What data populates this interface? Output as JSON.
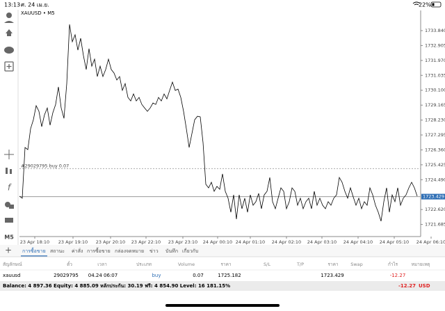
{
  "status_bar": {
    "time": "13:13",
    "date": "ศ. 24 เม.ย.",
    "battery": "22%"
  },
  "chart_data": {
    "type": "line",
    "title": "XAUUSD • M5",
    "color": "#000000",
    "values": [
      1723.46,
      1723.33,
      1726.51,
      1726.38,
      1727.69,
      1728.25,
      1729.13,
      1728.78,
      1727.82,
      1728.56,
      1728.99,
      1727.91,
      1728.69,
      1729.21,
      1730.31,
      1728.99,
      1728.34,
      1730.52,
      1734.23,
      1733.14,
      1733.58,
      1732.62,
      1733.36,
      1732.27,
      1731.4,
      1732.71,
      1731.61,
      1732.05,
      1730.96,
      1731.61,
      1730.96,
      1731.4,
      1732.05,
      1731.4,
      1731.18,
      1730.74,
      1730.96,
      1730.09,
      1730.52,
      1729.65,
      1729.43,
      1729.87,
      1729.43,
      1729.65,
      1729.21,
      1728.99,
      1728.78,
      1728.99,
      1729.3,
      1729.21,
      1729.65,
      1729.43,
      1729.87,
      1729.56,
      1730.09,
      1730.61,
      1730.09,
      1730.17,
      1729.65,
      1728.78,
      1727.69,
      1726.51,
      1727.38,
      1728.25,
      1728.47,
      1728.43,
      1726.82,
      1724.2,
      1723.98,
      1724.33,
      1723.76,
      1724.07,
      1723.89,
      1724.85,
      1723.76,
      1723.33,
      1722.45,
      1723.54,
      1722.02,
      1723.54,
      1722.67,
      1723.33,
      1722.45,
      1723.54,
      1722.89,
      1723.11,
      1723.63,
      1722.67,
      1723.54,
      1723.76,
      1724.63,
      1723.11,
      1722.67,
      1723.33,
      1723.98,
      1723.76,
      1722.67,
      1723.11,
      1723.98,
      1723.76,
      1722.89,
      1723.33,
      1722.67,
      1723.11,
      1723.33,
      1722.67,
      1723.76,
      1722.89,
      1723.33,
      1722.89,
      1722.67,
      1723.11,
      1722.89,
      1723.33,
      1723.54,
      1724.63,
      1724.33,
      1723.76,
      1723.33,
      1723.98,
      1723.41,
      1722.89,
      1723.33,
      1722.67,
      1723.11,
      1722.89,
      1723.98,
      1723.54,
      1722.89,
      1722.45,
      1721.89,
      1723.11,
      1723.98,
      1722.45,
      1723.54,
      1723.11,
      1723.98,
      1722.89,
      1723.33,
      1723.54,
      1723.98,
      1724.33,
      1723.98,
      1723.46
    ],
    "xlim": [
      0,
      144
    ],
    "xticks": [
      {
        "value": 5.5,
        "label": "23 Apr 18:10"
      },
      {
        "value": 19.25,
        "label": "23 Apr 19:10"
      },
      {
        "value": 32.75,
        "label": "23 Apr 20:10"
      },
      {
        "value": 45.5,
        "label": "23 Apr 22:10"
      },
      {
        "value": 58.75,
        "label": "23 Apr 23:10"
      },
      {
        "value": 71.25,
        "label": "24 Apr 00:10"
      },
      {
        "value": 83,
        "label": "24 Apr 01:10"
      },
      {
        "value": 96,
        "label": "24 Apr 02:10"
      },
      {
        "value": 108.75,
        "label": "24 Apr 03:10"
      },
      {
        "value": 121.75,
        "label": "24 Apr 04:10"
      },
      {
        "value": 134.75,
        "label": "24 Apr 05:10"
      },
      {
        "value": 148,
        "label": "24 Apr 06:10"
      }
    ],
    "ylim": [
      1720.925,
      1735.105
    ],
    "yticks": [
      {
        "value": 1733.84,
        "label": "1733.840"
      },
      {
        "value": 1732.905,
        "label": "1732.905"
      },
      {
        "value": 1731.97,
        "label": "1731.970"
      },
      {
        "value": 1731.035,
        "label": "1731.035"
      },
      {
        "value": 1730.1,
        "label": "1730.100"
      },
      {
        "value": 1729.165,
        "label": "1729.165"
      },
      {
        "value": 1728.23,
        "label": "1728.230"
      },
      {
        "value": 1727.295,
        "label": "1727.295"
      },
      {
        "value": 1726.36,
        "label": "1726.360"
      },
      {
        "value": 1725.425,
        "label": "1725.425"
      },
      {
        "value": 1724.49,
        "label": "1724.490"
      },
      {
        "value": 1722.62,
        "label": "1722.620"
      },
      {
        "value": 1721.685,
        "label": "1721.685"
      }
    ],
    "order_line": {
      "value": 1725.182,
      "label": "#29029795 buy 0.07"
    },
    "price_line": {
      "value": 1723.429,
      "label": "1723.429"
    }
  },
  "toolbar": {
    "timeframe": "M5"
  },
  "tabs": [
    "การซื้อขาย",
    "สถานะ",
    "ค่าสั่ง",
    "การซื้อขาย",
    "กล่องจดหมาย",
    "ข่าว",
    "บันทึก",
    "เกี่ยวกับ"
  ],
  "table": {
    "header": [
      "สัญลักษณ์",
      "ตั๋ว",
      "เวลา",
      "ประเภท",
      "Volume",
      "ราคา",
      "S/L",
      "T/P",
      "ราคา",
      "Swap",
      "กำไร",
      "หมายเหตุ"
    ],
    "row": {
      "symbol": "xauusd",
      "ticket": "29029795",
      "time": "04.24 06:07",
      "type": "buy",
      "volume": "0.07",
      "open_price": "1725.182",
      "price": "1723.429",
      "profit": "-12.27"
    }
  },
  "summary": {
    "text": "Balance: 4 897.36 Equity: 4 885.09 หลักประกัน: 30.19 ฟรี: 4 854.90 Level: 16 181.15%",
    "profit": "-12.27",
    "currency": "USD"
  }
}
